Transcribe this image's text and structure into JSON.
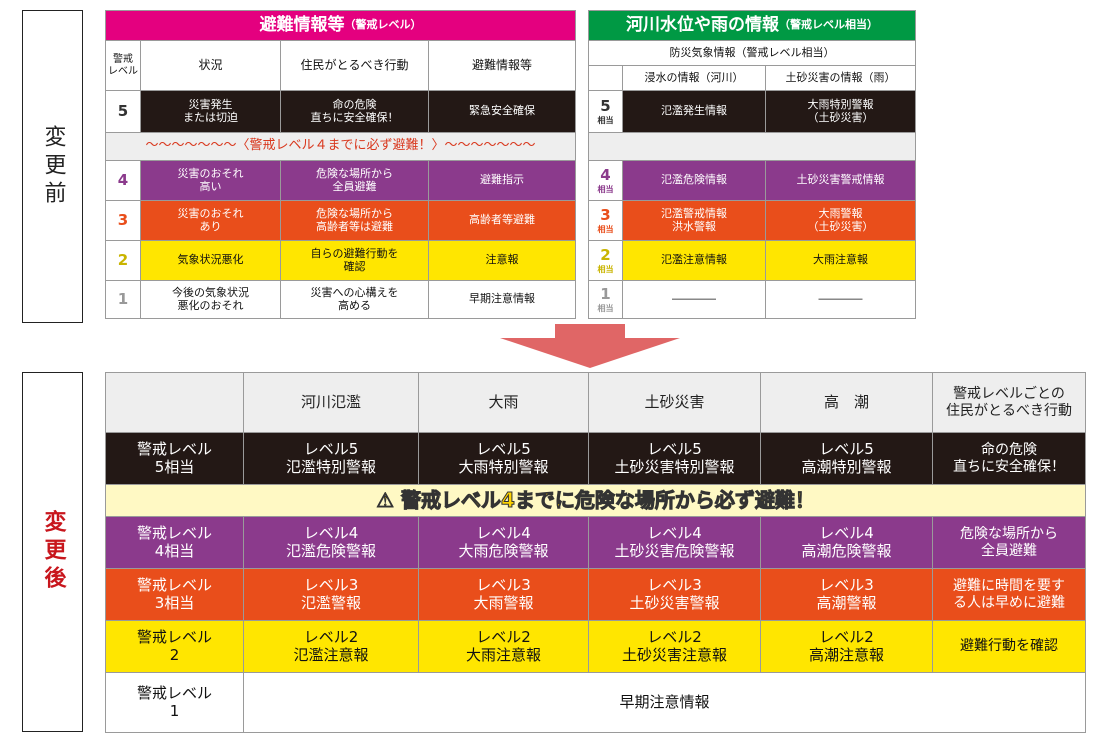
{
  "before_label": "変更前",
  "after_label": "変更後",
  "before_table": {
    "title": "避難情報等",
    "title_note": "（警戒レベル）",
    "headers": [
      "警戒\nレベル",
      "状況",
      "住民がとるべき行動",
      "避難情報等"
    ],
    "notice": "〜〜〜〜〜〜〜〈警戒レベル４までに必ず避難！〉〜〜〜〜〜〜〜",
    "rows": [
      {
        "level": "5",
        "cells": [
          "災害発生\nまたは切迫",
          "命の危険\n直ちに安全確保！",
          "緊急安全確保"
        ]
      },
      {
        "level": "4",
        "cells": [
          "災害のおそれ\n高い",
          "危険な場所から\n全員避難",
          "避難指示"
        ]
      },
      {
        "level": "3",
        "cells": [
          "災害のおそれ\nあり",
          "危険な場所から\n高齢者等は避難",
          "高齢者等避難"
        ]
      },
      {
        "level": "2",
        "cells": [
          "気象状況悪化",
          "自らの避難行動を\n確認",
          "注意報"
        ]
      },
      {
        "level": "1",
        "cells": [
          "今後の気象状況\n悪化のおそれ",
          "災害への心構えを\n高める",
          "早期注意情報"
        ]
      }
    ]
  },
  "river_table": {
    "title": "河川水位や雨の情報",
    "title_note": "（警戒レベル相当）",
    "header": "防災気象情報（警戒レベル相当）",
    "subheaders": [
      "浸水の情報（河川）",
      "土砂災害の情報（雨）"
    ],
    "rows": [
      {
        "level": "5",
        "level_note": "相当",
        "cells": [
          "氾濫発生情報",
          "大雨特別警報\n（土砂災害）"
        ]
      },
      {
        "level": "4",
        "level_note": "相当",
        "cells": [
          "氾濫危険情報",
          "土砂災害警戒情報"
        ]
      },
      {
        "level": "3",
        "level_note": "相当",
        "cells": [
          "氾濫警戒情報\n洪水警報",
          "大雨警報\n（土砂災害）"
        ]
      },
      {
        "level": "2",
        "level_note": "相当",
        "cells": [
          "氾濫注意情報",
          "大雨注意報"
        ]
      },
      {
        "level": "1",
        "level_note": "相当",
        "cells": [
          "――――",
          "――――"
        ]
      }
    ]
  },
  "after_table": {
    "headers": [
      "河川氾濫",
      "大雨",
      "土砂災害",
      "高　潮",
      "警戒レベルごとの\n住民がとるべき行動"
    ],
    "banner": "⚠ 警戒レベル4までに危険な場所から必ず避難！",
    "rows": [
      {
        "level": "警戒レベル\n5相当",
        "cells": [
          "レベル5\n氾濫特別警報",
          "レベル5\n大雨特別警報",
          "レベル5\n土砂災害特別警報",
          "レベル5\n高潮特別警報",
          "命の危険\n直ちに安全確保！"
        ]
      },
      {
        "level": "警戒レベル\n4相当",
        "cells": [
          "レベル4\n氾濫危険警報",
          "レベル4\n大雨危険警報",
          "レベル4\n土砂災害危険警報",
          "レベル4\n高潮危険警報",
          "危険な場所から\n全員避難"
        ]
      },
      {
        "level": "警戒レベル\n3相当",
        "cells": [
          "レベル3\n氾濫警報",
          "レベル3\n大雨警報",
          "レベル3\n土砂災害警報",
          "レベル3\n高潮警報",
          "避難に時間を要す\nる人は早めに避難"
        ]
      },
      {
        "level": "警戒レベル\n2",
        "cells": [
          "レベル2\n氾濫注意報",
          "レベル2\n大雨注意報",
          "レベル2\n土砂災害注意報",
          "レベル2\n高潮注意報",
          "避難行動を確認"
        ]
      },
      {
        "level": "警戒レベル\n1",
        "cells": [
          "早期注意情報"
        ]
      }
    ]
  }
}
